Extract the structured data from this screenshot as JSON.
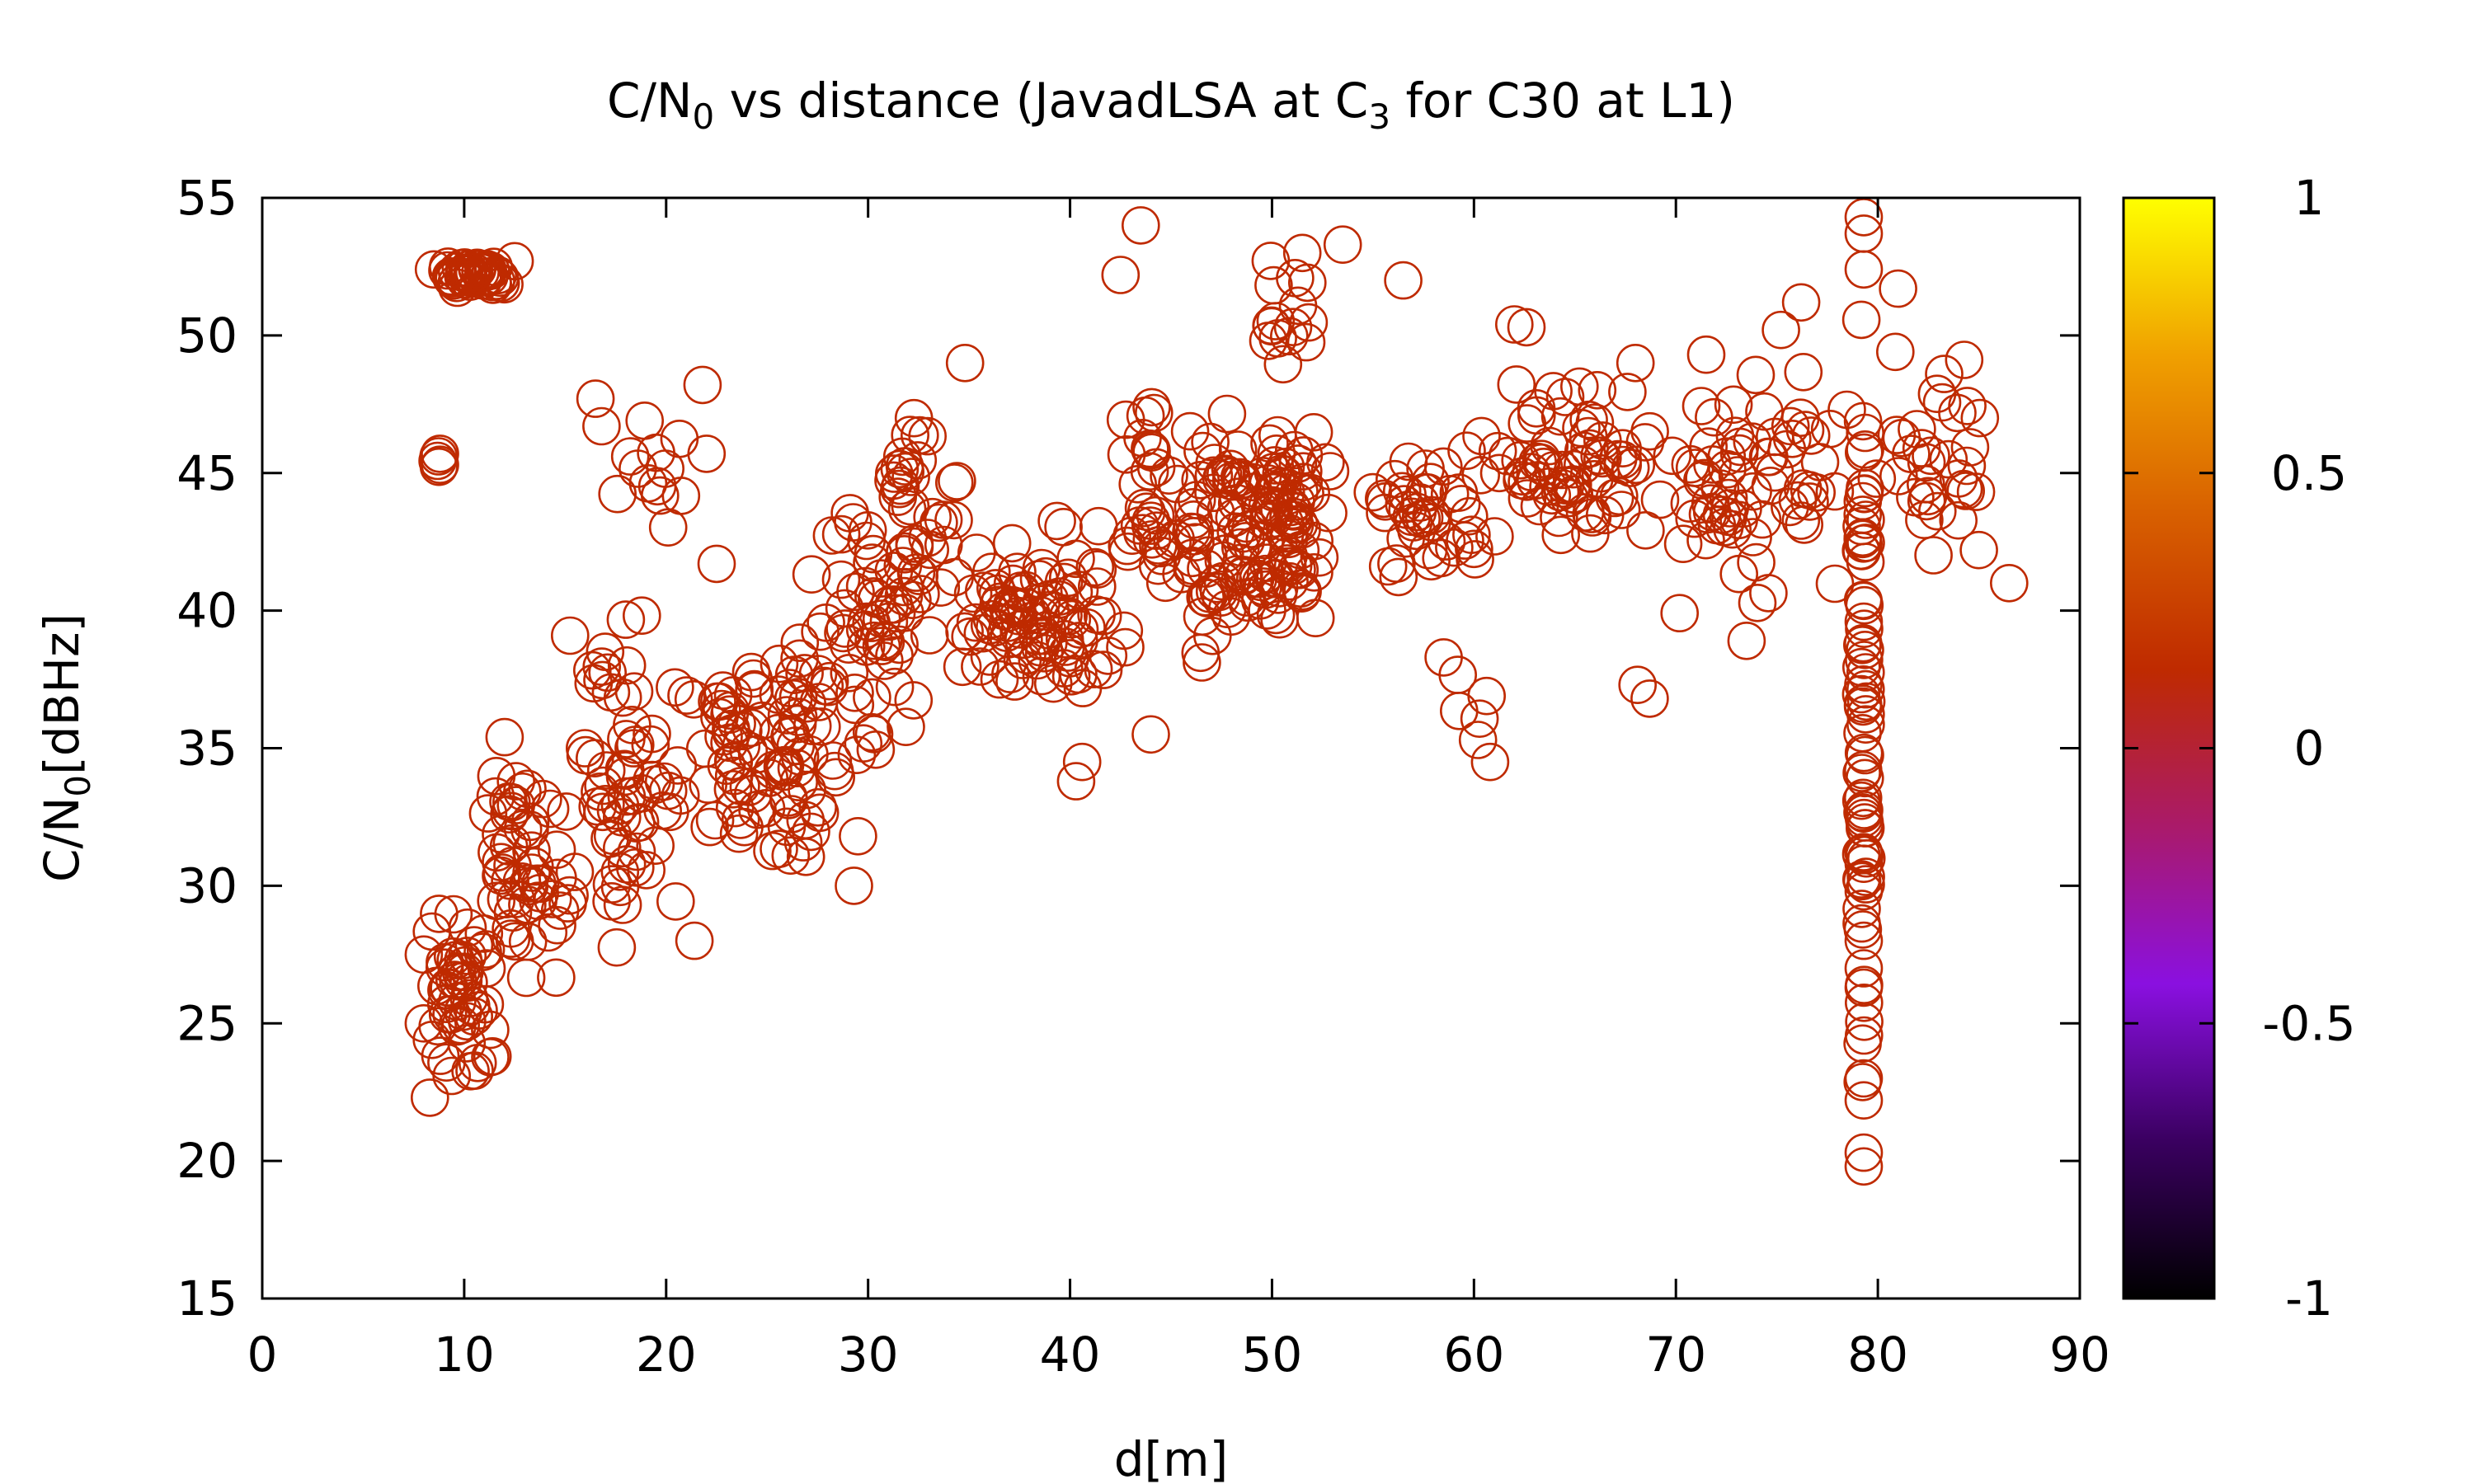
{
  "chart_data": {
    "type": "scatter",
    "title": {
      "part1": "C/N",
      "sub1": "0",
      "part2": " vs distance (JavadLSA at C",
      "sub2": "3",
      "part3": " for C30 at L1)"
    },
    "xlabel": "d[m]",
    "ylabel": {
      "main": "C/N",
      "sub": "0",
      "rest": "[dBHz]"
    },
    "xlim": [
      0,
      90
    ],
    "ylim": [
      15,
      55
    ],
    "x_ticks": [
      "0",
      "10",
      "20",
      "30",
      "40",
      "50",
      "60",
      "70",
      "80",
      "90"
    ],
    "y_ticks": [
      "15",
      "20",
      "25",
      "30",
      "35",
      "40",
      "45",
      "50",
      "55"
    ],
    "colorbar": {
      "range": [
        -1,
        1
      ],
      "ticks": [
        "-1",
        "-0.5",
        "0",
        "0.5",
        "1"
      ],
      "palette": [
        "#000000",
        "#3a0060",
        "#8a10e0",
        "#aa1a6a",
        "#bf2a00",
        "#d86000",
        "#f0a000",
        "#ffff00"
      ]
    },
    "marker_color": "#bf2a00",
    "marker": "open-circle",
    "grid": false,
    "clusters": [
      {
        "x": [
          8.5,
          12.5
        ],
        "y": [
          51.5,
          52.8
        ],
        "n": 40
      },
      {
        "x": [
          8.5,
          9.0
        ],
        "y": [
          45,
          46
        ],
        "n": 3
      },
      {
        "x": [
          7.5,
          12
        ],
        "y": [
          22,
          31
        ],
        "n": 50
      },
      {
        "x": [
          10,
          16
        ],
        "y": [
          26,
          36
        ],
        "n": 55
      },
      {
        "x": [
          14,
          22
        ],
        "y": [
          26,
          42
        ],
        "n": 65
      },
      {
        "x": [
          16,
          22
        ],
        "y": [
          40,
          48.5
        ],
        "n": 12
      },
      {
        "x": [
          20,
          30
        ],
        "y": [
          30,
          40
        ],
        "n": 90
      },
      {
        "x": [
          26,
          34
        ],
        "y": [
          33,
          46
        ],
        "n": 60
      },
      {
        "x": [
          30,
          36
        ],
        "y": [
          38,
          49
        ],
        "n": 35
      },
      {
        "x": [
          34,
          42
        ],
        "y": [
          36,
          43
        ],
        "n": 70
      },
      {
        "x": [
          38,
          44
        ],
        "y": [
          33.5,
          47
        ],
        "n": 25
      },
      {
        "x": [
          42,
          46
        ],
        "y": [
          39,
          50
        ],
        "n": 30
      },
      {
        "x": [
          44,
          54
        ],
        "y": [
          38,
          48
        ],
        "n": 150
      },
      {
        "x": [
          48,
          54
        ],
        "y": [
          48,
          53.5
        ],
        "n": 15
      },
      {
        "x": [
          54,
          62
        ],
        "y": [
          40,
          47
        ],
        "n": 45
      },
      {
        "x": [
          58,
          62
        ],
        "y": [
          34.5,
          38.5
        ],
        "n": 4
      },
      {
        "x": [
          60,
          70
        ],
        "y": [
          40,
          50
        ],
        "n": 70
      },
      {
        "x": [
          68,
          78
        ],
        "y": [
          39,
          49.5
        ],
        "n": 55
      },
      {
        "x": [
          75,
          79
        ],
        "y": [
          40,
          51
        ],
        "n": 15
      },
      {
        "x": [
          79.1,
          79.5
        ],
        "y": [
          19.5,
          54.5
        ],
        "n": 70
      },
      {
        "x": [
          79.5,
          86.5
        ],
        "y": [
          39.5,
          52
        ],
        "n": 30
      }
    ],
    "highlights": [
      [
        8.5,
        52.4
      ],
      [
        9.2,
        52.5
      ],
      [
        10.5,
        52.3
      ],
      [
        12.5,
        52.7
      ],
      [
        8.8,
        45.3
      ],
      [
        8.8,
        45.7
      ],
      [
        8,
        27.5
      ],
      [
        8,
        25
      ],
      [
        8.3,
        22.3
      ],
      [
        8.4,
        24.4
      ],
      [
        11.4,
        23.8
      ],
      [
        12,
        35.4
      ],
      [
        16.5,
        47.7
      ],
      [
        16.8,
        46.7
      ],
      [
        21.8,
        48.2
      ],
      [
        22,
        45.7
      ],
      [
        22.5,
        41.7
      ],
      [
        21.4,
        28
      ],
      [
        29.3,
        30
      ],
      [
        29.5,
        31.8
      ],
      [
        34.8,
        49
      ],
      [
        40.3,
        33.8
      ],
      [
        40.6,
        34.5
      ],
      [
        42.5,
        52.2
      ],
      [
        43.5,
        54
      ],
      [
        44,
        35.5
      ],
      [
        51.5,
        53
      ],
      [
        53.5,
        53.3
      ],
      [
        56.5,
        52
      ],
      [
        58.5,
        38.3
      ],
      [
        60.2,
        35.3
      ],
      [
        60.8,
        34.5
      ],
      [
        62,
        50.4
      ],
      [
        62.6,
        50.3
      ],
      [
        68,
        49
      ],
      [
        68.1,
        37.3
      ],
      [
        68.7,
        36.8
      ],
      [
        71.5,
        49.3
      ],
      [
        73.5,
        38.9
      ],
      [
        75.2,
        50.2
      ],
      [
        76.2,
        51.2
      ],
      [
        81,
        51.7
      ],
      [
        86.5,
        41
      ],
      [
        85,
        42.2
      ],
      [
        84,
        44.8
      ],
      [
        83.5,
        45.5
      ],
      [
        79.3,
        54.3
      ],
      [
        79.3,
        53.7
      ],
      [
        79.3,
        52.4
      ],
      [
        79.3,
        31.2
      ],
      [
        79.3,
        30.8
      ],
      [
        79.3,
        29.8
      ],
      [
        79.3,
        28
      ],
      [
        79.3,
        27
      ],
      [
        79.3,
        26.3
      ],
      [
        79.3,
        23
      ],
      [
        79.3,
        22.2
      ],
      [
        79.3,
        20.3
      ],
      [
        79.3,
        19.8
      ]
    ],
    "seed": 20240611
  }
}
